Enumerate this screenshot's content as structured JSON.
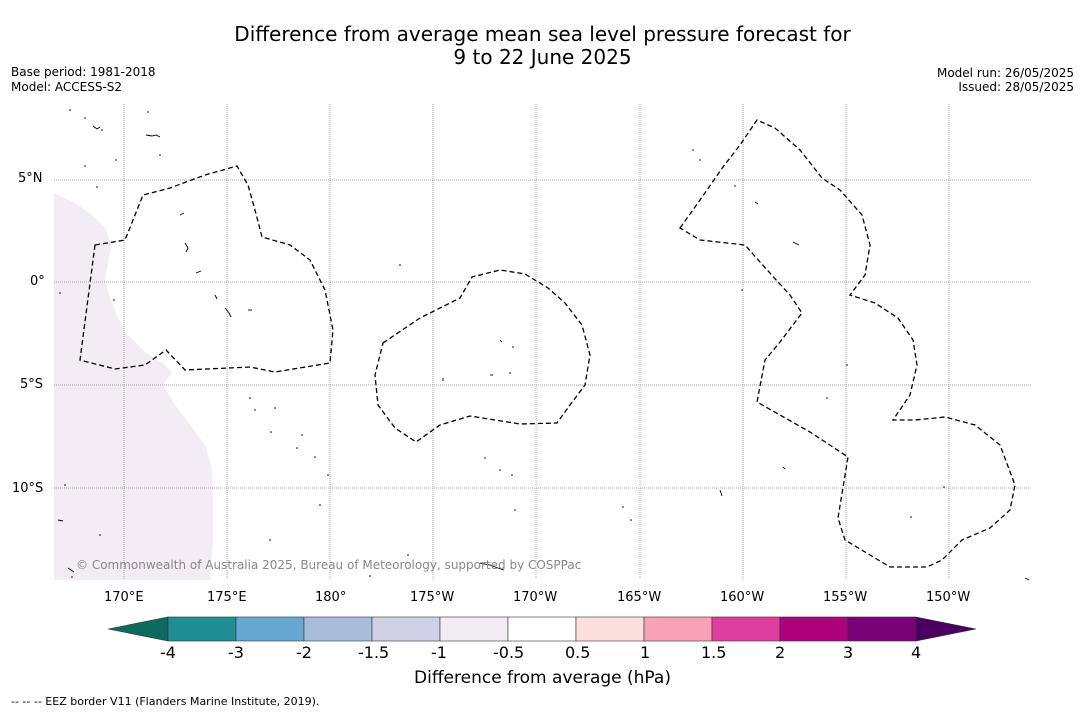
{
  "title_line1": "Difference from average mean sea level pressure forecast for",
  "title_line2": "9 to 22 June 2025",
  "meta_left": {
    "base_period": "Base period: 1981-2018",
    "model": "Model: ACCESS-S2"
  },
  "meta_right": {
    "model_run": "Model run: 26/05/2025",
    "issued": "Issued: 28/05/2025"
  },
  "copyright": "© Commonwealth of Australia 2025, Bureau of Meteorology, supported by COSPPac",
  "lat_labels": [
    "5°N",
    "0°",
    "5°S",
    "10°S"
  ],
  "lon_labels": [
    "170°E",
    "175°E",
    "180°",
    "175°W",
    "170°W",
    "165°W",
    "160°W",
    "155°W",
    "150°W"
  ],
  "colorbar": {
    "ticks": [
      "-4",
      "-3",
      "-2",
      "-1.5",
      "-1",
      "-0.5",
      "0.5",
      "1",
      "1.5",
      "2",
      "3",
      "4"
    ],
    "colors": [
      "#0b6b5e",
      "#208f95",
      "#66a8d1",
      "#a7bddc",
      "#cfd0e6",
      "#f2ecf5",
      "#ffffff",
      "#fde0dd",
      "#f9a1b6",
      "#dd3e9f",
      "#ae017e",
      "#7a0177",
      "#4a0060"
    ],
    "title": "Difference from average (hPa)"
  },
  "footer": "--  --  -- EEZ border V11 (Flanders Marine Institute, 2019)."
}
